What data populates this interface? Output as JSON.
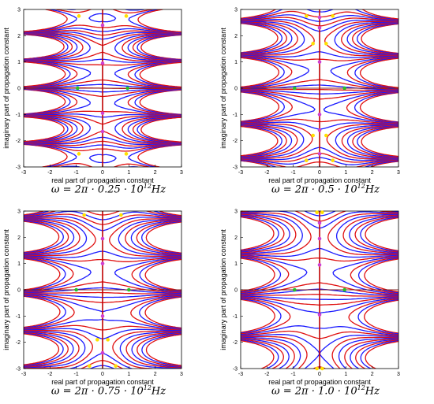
{
  "colors": {
    "upper_level_curves": "#e01010",
    "lower_level_curves": "#1a1aff",
    "imag_axis": "#c00000",
    "real_axis": "#802020",
    "marker_green": "#27c227",
    "marker_magenta": "#d040d0",
    "marker_yellow": "#ffe000"
  },
  "chart_data": [
    {
      "type": "contour",
      "xlabel": "real part of propagation constant",
      "ylabel": "imaginary part of propagation constant",
      "xlim": [
        -3,
        3
      ],
      "ylim": [
        -3,
        3
      ],
      "xticks": [
        "-3",
        "-2",
        "-1",
        "0",
        "1",
        "2",
        "3"
      ],
      "yticks": [
        "3",
        "2",
        "1",
        "0",
        "-1",
        "-2",
        "-3"
      ],
      "caption": {
        "prefix": "ω = 2π · 0.25 · 10",
        "exp": "12",
        "suffix": "Hz"
      },
      "params": {
        "a": 1.0,
        "b": 3.0,
        "k": 0
      },
      "markers_green": [
        [
          -0.95,
          0
        ],
        [
          0.95,
          0
        ]
      ],
      "markers_magenta": [
        [
          0,
          0.95
        ],
        [
          0,
          2.4
        ],
        [
          0,
          -0.95
        ],
        [
          0,
          -1.65
        ]
      ],
      "markers_yellow": [
        [
          -0.9,
          2.75
        ],
        [
          0.9,
          2.75
        ],
        [
          -0.9,
          -2.5
        ],
        [
          0.9,
          -2.5
        ]
      ]
    },
    {
      "type": "contour",
      "xlabel": "real part of propagation constant",
      "ylabel": "imaginary part of propagation constant",
      "xlim": [
        -3,
        3
      ],
      "ylim": [
        -3,
        3
      ],
      "xticks": [
        "-3",
        "-2",
        "-1",
        "0",
        "1",
        "2",
        "3"
      ],
      "yticks": [
        "3",
        "2",
        "1",
        "0",
        "-1",
        "-2",
        "-3"
      ],
      "caption": {
        "prefix": "ω = 2π · 0.5 · 10",
        "exp": "12",
        "suffix": "Hz"
      },
      "params": {
        "a": 0.9,
        "b": 2.4,
        "k": 1
      },
      "markers_green": [
        [
          -0.95,
          0
        ],
        [
          0.95,
          0
        ]
      ],
      "markers_magenta": [
        [
          0,
          2.7
        ],
        [
          0,
          2.3
        ],
        [
          0,
          1.0
        ],
        [
          0,
          -1.0
        ],
        [
          0,
          -1.6
        ],
        [
          0,
          -2.5
        ]
      ],
      "markers_yellow": [
        [
          -0.5,
          2.75
        ],
        [
          0.5,
          2.75
        ],
        [
          -0.25,
          1.7
        ],
        [
          0.25,
          1.7
        ],
        [
          -0.25,
          -1.8
        ],
        [
          0.25,
          -1.8
        ],
        [
          -0.5,
          -2.75
        ],
        [
          0.5,
          -2.75
        ]
      ]
    },
    {
      "type": "contour",
      "xlabel": "real part of propagation constant",
      "ylabel": "imaginary part of propagation constant",
      "xlim": [
        -3,
        3
      ],
      "ylim": [
        -3,
        3
      ],
      "xticks": [
        "-3",
        "-2",
        "-1",
        "0",
        "1",
        "2",
        "3"
      ],
      "yticks": [
        "3",
        "2",
        "1",
        "0",
        "-1",
        "-2",
        "-3"
      ],
      "caption": {
        "prefix": "ω = 2π · 0.75 · 10",
        "exp": "12",
        "suffix": "Hz"
      },
      "params": {
        "a": 0.85,
        "b": 2.2,
        "k": 2
      },
      "markers_green": [
        [
          -1.0,
          0
        ],
        [
          1.0,
          0
        ]
      ],
      "markers_magenta": [
        [
          0,
          1.95
        ],
        [
          0,
          1.0
        ],
        [
          0,
          -1.0
        ],
        [
          0,
          -2.4
        ]
      ],
      "markers_yellow": [
        [
          -0.7,
          2.85
        ],
        [
          0.7,
          2.85
        ],
        [
          -0.2,
          -1.9
        ],
        [
          0.2,
          -1.9
        ],
        [
          -0.5,
          -2.9
        ],
        [
          0.5,
          -2.9
        ]
      ]
    },
    {
      "type": "contour",
      "xlabel": "real part of propagation constant",
      "ylabel": "imaginary part of propagation constant",
      "xlim": [
        -3,
        3
      ],
      "ylim": [
        -3,
        3
      ],
      "xticks": [
        "-3",
        "-2",
        "-1",
        "0",
        "1",
        "2",
        "3"
      ],
      "yticks": [
        "3",
        "2",
        "1",
        "0",
        "-1",
        "-2",
        "-3"
      ],
      "caption": {
        "prefix": "ω = 2π · 1.0 · 10",
        "exp": "12",
        "suffix": "Hz"
      },
      "params": {
        "a": 0.8,
        "b": 2.0,
        "k": 3
      },
      "markers_green": [
        [
          -0.95,
          0
        ],
        [
          0.95,
          0
        ]
      ],
      "markers_magenta": [
        [
          0,
          2.55
        ],
        [
          0,
          1.95
        ],
        [
          0,
          0.95
        ],
        [
          0,
          -0.95
        ]
      ],
      "markers_yellow": [
        [
          -0.1,
          2.95
        ],
        [
          0.1,
          2.95
        ],
        [
          -0.1,
          -3.0
        ],
        [
          0.1,
          -3.0
        ]
      ]
    }
  ]
}
